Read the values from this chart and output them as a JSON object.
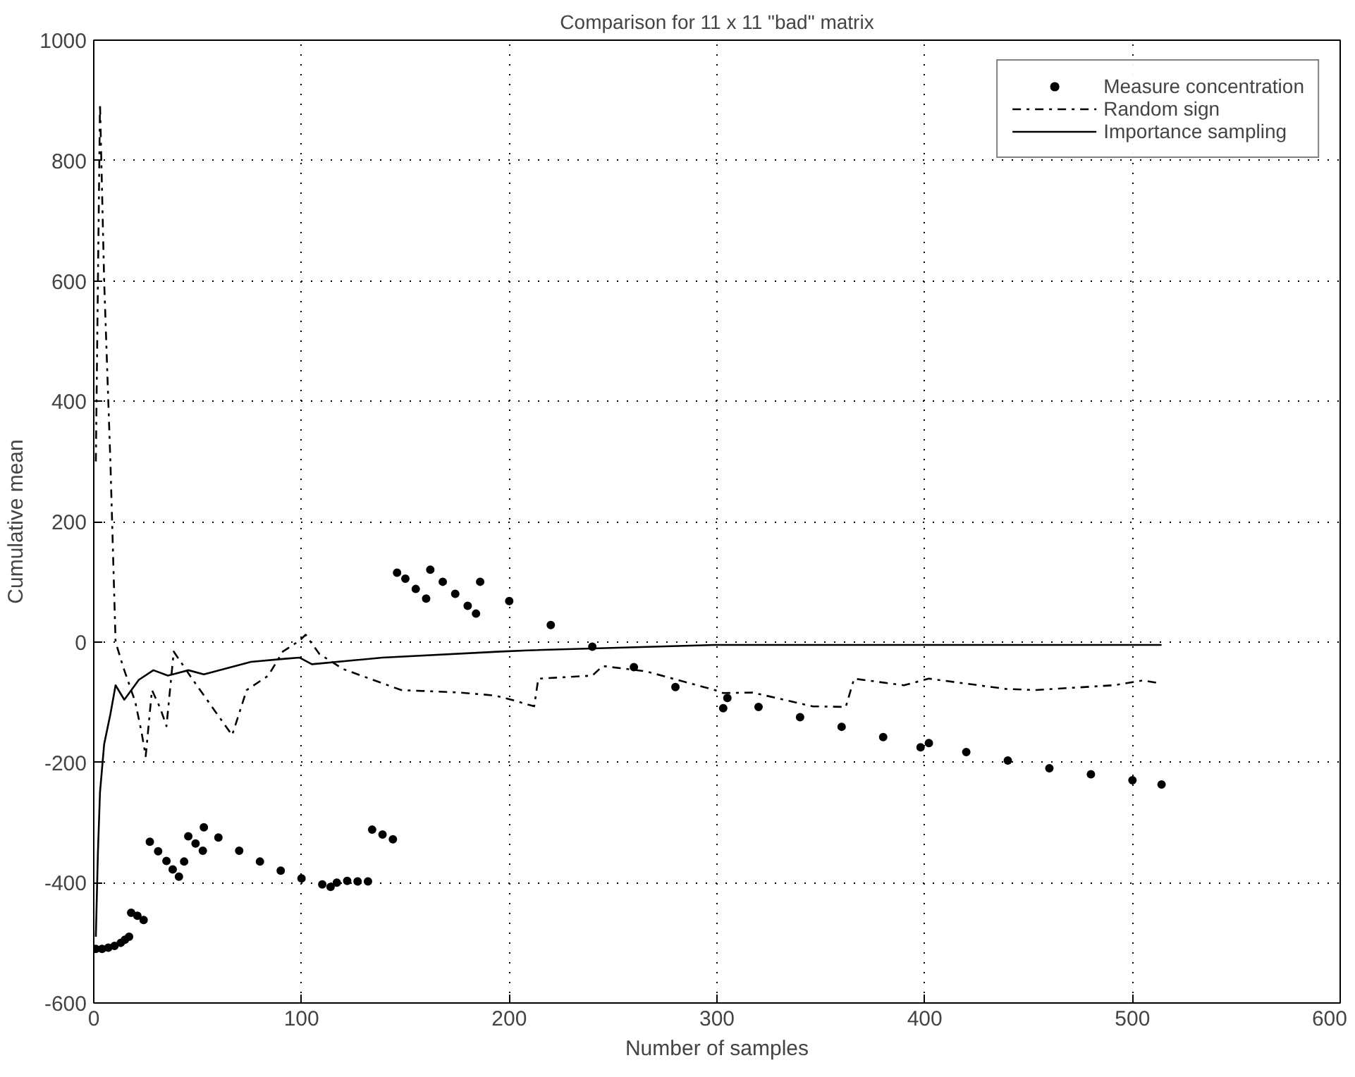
{
  "chart_data": {
    "type": "line",
    "title": "Comparison for 11 x 11 \"bad\" matrix",
    "xlabel": "Number of samples",
    "ylabel": "Cumulative mean",
    "xlim": [
      0,
      600
    ],
    "ylim": [
      -600,
      1000
    ],
    "xticks": [
      0,
      100,
      200,
      300,
      400,
      500,
      600
    ],
    "yticks": [
      -600,
      -400,
      -200,
      0,
      200,
      400,
      600,
      800,
      1000
    ],
    "grid": true,
    "legend": "top right",
    "series": [
      {
        "name": "Measure concentration",
        "type": "scatter",
        "marker": "circle",
        "color": "#000000",
        "x": [
          1,
          4,
          7,
          10,
          13,
          15,
          17,
          18,
          21,
          24,
          27,
          31,
          35,
          38,
          41,
          43.5,
          45.5,
          49,
          52.5,
          53,
          60,
          70,
          80,
          90,
          100,
          110,
          114,
          117,
          122,
          127,
          132,
          134,
          139,
          144,
          146,
          150,
          155,
          160,
          162,
          168,
          174,
          180,
          184,
          186,
          200,
          220,
          240,
          260,
          280,
          303,
          305,
          320,
          340,
          360,
          380,
          398,
          402,
          420,
          440,
          460,
          480,
          500,
          514
        ],
        "values": [
          -510,
          -510,
          -508,
          -505,
          -500,
          -495,
          -490,
          -450,
          -455,
          -462,
          -332,
          -348,
          -364,
          -378,
          -390,
          -365,
          -323,
          -335,
          -347,
          -308,
          -325,
          -347,
          -365,
          -380,
          -393,
          -403,
          -407,
          -400,
          -397,
          -398,
          -398,
          -312,
          -320,
          -328,
          115,
          105,
          88,
          72,
          120,
          100,
          80,
          60,
          47,
          100,
          68,
          28,
          -8,
          -42,
          -75,
          -110,
          -93,
          -108,
          -125,
          -141,
          -158,
          -175,
          -168,
          -183,
          -197,
          -210,
          -220,
          -230,
          -237
        ]
      },
      {
        "name": "Random sign",
        "line_style": "dashdot",
        "color": "#000000",
        "x": [
          1,
          3,
          5,
          8,
          10.5,
          14,
          20,
          23,
          25,
          28,
          32,
          35,
          38.5,
          47.7,
          66.6,
          73.6,
          84,
          91,
          99,
          102,
          108.6,
          120,
          148,
          176,
          193,
          201,
          212,
          214,
          240,
          245,
          266,
          299,
          303,
          317,
          346,
          362,
          366,
          390,
          402,
          439,
          453,
          491,
          505,
          512
        ],
        "values": [
          300,
          895,
          600,
          300,
          0,
          -40,
          -100,
          -150,
          -190,
          -80,
          -110,
          -140,
          -16,
          -63,
          -155,
          -80,
          -56,
          -16,
          2,
          12,
          -20,
          -45,
          -80,
          -84,
          -89,
          -96,
          -107,
          -61,
          -56,
          -40,
          -49,
          -80,
          -85,
          -84,
          -107,
          -108,
          -61,
          -72,
          -61,
          -78,
          -80,
          -72,
          -64,
          -68
        ]
      },
      {
        "name": "Importance sampling",
        "line_style": "solid",
        "color": "#000000",
        "x": [
          1,
          2,
          3,
          5,
          8,
          10.5,
          14.7,
          21.7,
          28.7,
          35.7,
          45.6,
          53,
          75.7,
          92,
          99,
          105,
          139,
          196,
          209,
          299,
          406,
          514
        ],
        "values": [
          -490,
          -350,
          -250,
          -170,
          -120,
          -72,
          -96,
          -63,
          -47,
          -56,
          -47,
          -54,
          -33,
          -28,
          -26,
          -37,
          -26,
          -16,
          -14,
          -5,
          -5,
          -5
        ]
      }
    ]
  }
}
